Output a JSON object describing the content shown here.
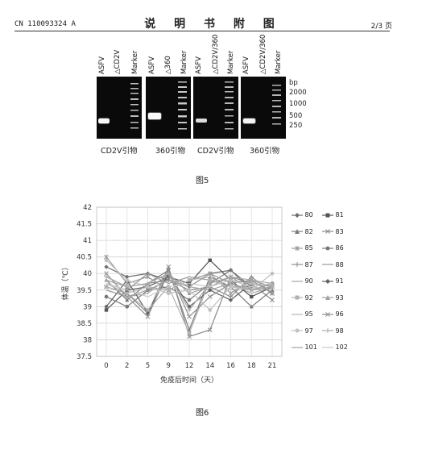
{
  "header": {
    "left": "CN 110093324 A",
    "center": "说 明 书 附 图",
    "right": "2/3 页"
  },
  "gels": [
    {
      "lanes": [
        "ASFV",
        "△CD2V",
        "Marker"
      ],
      "caption": "CD2V引物"
    },
    {
      "lanes": [
        "ASFV",
        "△360",
        "Marker"
      ],
      "caption": "360引物"
    },
    {
      "lanes": [
        "ASFV",
        "△CD2V/360",
        "Marker"
      ],
      "caption": "CD2V引物"
    },
    {
      "lanes": [
        "ASFV",
        "△CD2V/360",
        "Marker"
      ],
      "caption": "360引物"
    }
  ],
  "bp_labels": [
    "bp",
    "2000",
    "1000",
    "500",
    "250"
  ],
  "figure5_caption": "图5",
  "figure6_caption": "图6",
  "chart_data": {
    "type": "line",
    "xlabel": "免疫后时间（天）",
    "ylabel": "体温（℃）",
    "x": [
      "0",
      "2",
      "5",
      "9",
      "12",
      "14",
      "16",
      "18",
      "21"
    ],
    "ylim": [
      37.5,
      42
    ],
    "yticks": [
      "37.5",
      "38",
      "38.5",
      "39",
      "39.5",
      "40",
      "40.5",
      "41",
      "41.5",
      "42"
    ],
    "grid": true,
    "legend_position": "right",
    "series": [
      {
        "name": "80",
        "marker": "diamond",
        "color": "#6b6b6b",
        "values": [
          40.2,
          39.9,
          40.0,
          39.8,
          39.6,
          40.0,
          40.1,
          39.6,
          39.7
        ]
      },
      {
        "name": "81",
        "marker": "square",
        "color": "#555555",
        "values": [
          38.9,
          39.5,
          39.6,
          39.9,
          39.7,
          40.4,
          39.8,
          39.3,
          39.6
        ]
      },
      {
        "name": "82",
        "marker": "triangle",
        "color": "#7a7a7a",
        "values": [
          39.8,
          39.2,
          39.7,
          40.1,
          38.3,
          39.9,
          39.6,
          39.0,
          39.5
        ]
      },
      {
        "name": "83",
        "marker": "x",
        "color": "#8a8a8a",
        "values": [
          39.6,
          39.4,
          38.8,
          40.2,
          38.1,
          38.3,
          39.9,
          39.7,
          39.2
        ]
      },
      {
        "name": "85",
        "marker": "star",
        "color": "#9a9a9a",
        "values": [
          40.5,
          39.7,
          39.9,
          39.5,
          39.8,
          40.0,
          39.4,
          39.8,
          39.6
        ]
      },
      {
        "name": "86",
        "marker": "circle",
        "color": "#777777",
        "values": [
          39.3,
          39.0,
          39.5,
          39.6,
          39.2,
          39.7,
          40.1,
          39.5,
          39.7
        ]
      },
      {
        "name": "87",
        "marker": "plus",
        "color": "#8c8c8c",
        "values": [
          39.9,
          39.6,
          39.7,
          39.8,
          39.5,
          39.6,
          39.3,
          39.9,
          39.4
        ]
      },
      {
        "name": "88",
        "marker": "none",
        "color": "#999999",
        "values": [
          39.7,
          39.5,
          40.0,
          39.7,
          39.9,
          39.8,
          39.6,
          39.6,
          39.7
        ]
      },
      {
        "name": "90",
        "marker": "none",
        "color": "#a5a5a5",
        "values": [
          39.5,
          39.3,
          39.4,
          39.9,
          39.6,
          39.5,
          39.7,
          39.4,
          39.6
        ]
      },
      {
        "name": "91",
        "marker": "diamond",
        "color": "#606060",
        "values": [
          39.0,
          39.8,
          38.8,
          40.0,
          39.0,
          39.5,
          39.2,
          39.7,
          39.6
        ]
      },
      {
        "name": "92",
        "marker": "square",
        "color": "#b0b0b0",
        "values": [
          39.6,
          39.4,
          38.9,
          39.6,
          38.2,
          39.8,
          39.8,
          39.7,
          39.6
        ]
      },
      {
        "name": "93",
        "marker": "triangle",
        "color": "#a0a0a0",
        "values": [
          39.8,
          39.6,
          39.7,
          40.0,
          39.4,
          39.6,
          39.9,
          39.5,
          39.7
        ]
      },
      {
        "name": "95",
        "marker": "none",
        "color": "#b8b8b8",
        "values": [
          39.7,
          39.4,
          39.6,
          39.5,
          39.8,
          39.9,
          39.5,
          39.6,
          39.5
        ]
      },
      {
        "name": "96",
        "marker": "x",
        "color": "#8f8f8f",
        "values": [
          40.0,
          39.3,
          38.7,
          40.1,
          38.7,
          39.3,
          39.7,
          39.8,
          39.4
        ]
      },
      {
        "name": "97",
        "marker": "circle",
        "color": "#c0c0c0",
        "values": [
          40.4,
          39.8,
          39.6,
          39.4,
          39.5,
          38.9,
          39.6,
          39.5,
          40.0
        ]
      },
      {
        "name": "98",
        "marker": "plus",
        "color": "#aaaaaa",
        "values": [
          39.9,
          39.6,
          39.7,
          40.0,
          38.9,
          39.7,
          39.9,
          39.8,
          39.7
        ]
      },
      {
        "name": "101",
        "marker": "none",
        "color": "#9f9f9f",
        "values": [
          39.5,
          39.3,
          39.5,
          39.8,
          39.6,
          40.0,
          39.7,
          39.5,
          39.6
        ]
      },
      {
        "name": "102",
        "marker": "none",
        "color": "#c8c8c8",
        "values": [
          39.7,
          39.5,
          39.3,
          39.6,
          39.7,
          39.6,
          39.8,
          39.6,
          39.7
        ]
      }
    ]
  }
}
